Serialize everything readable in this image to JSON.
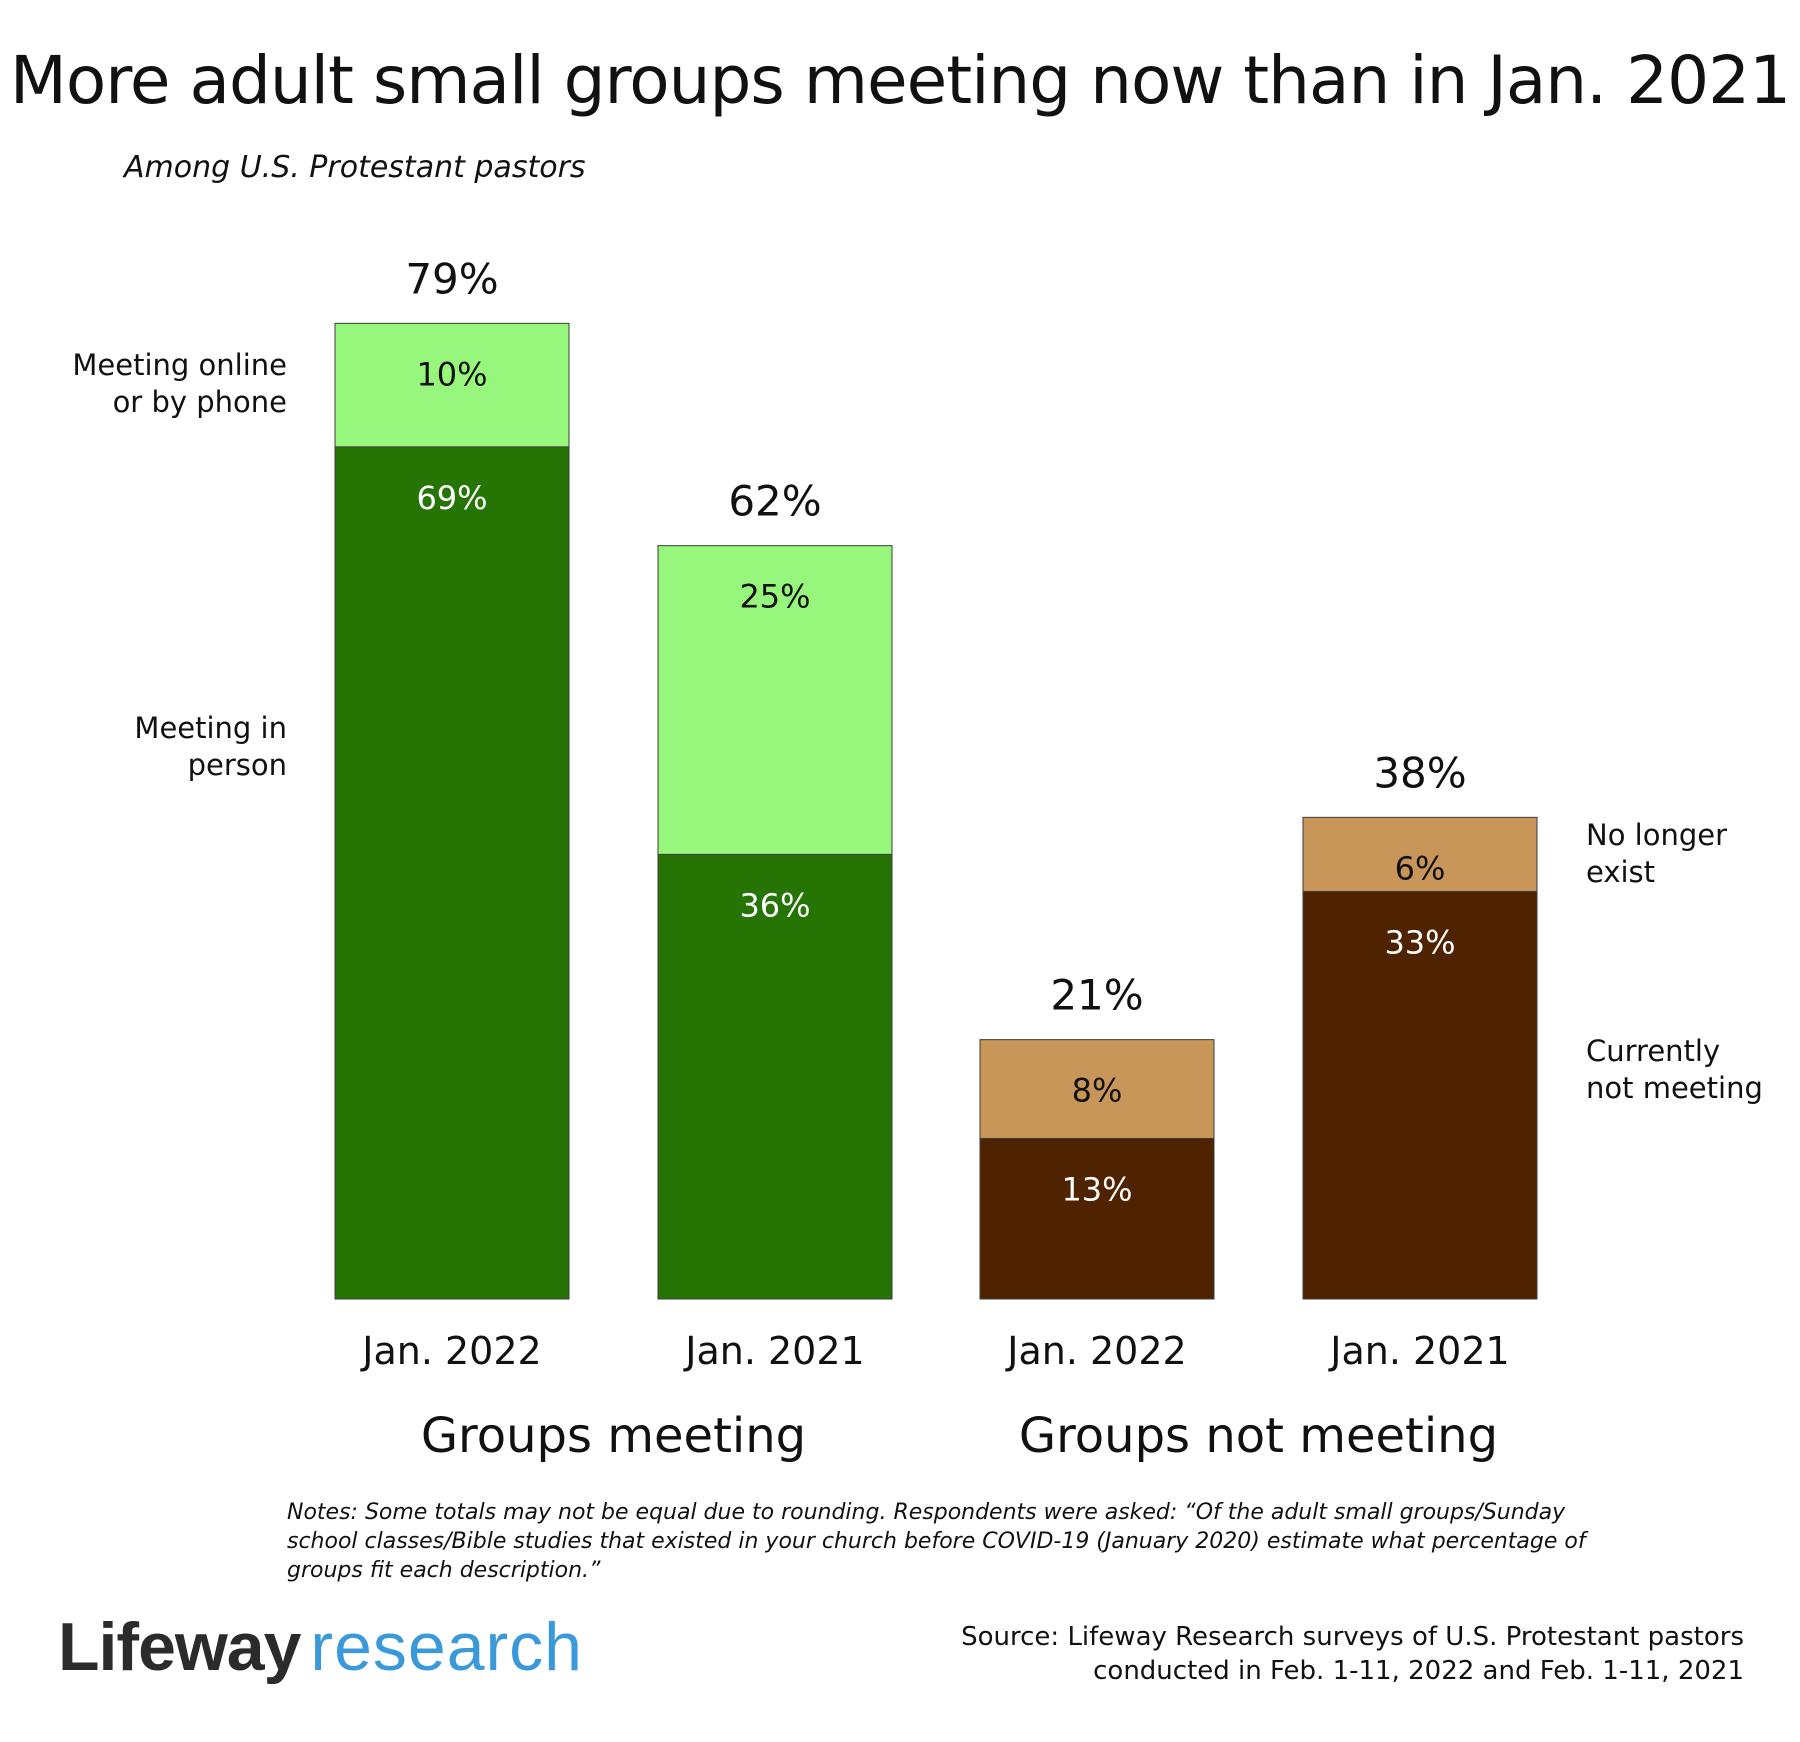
{
  "title": "More adult small groups meeting now than in Jan. 2021",
  "subtitle": "Among U.S. Protestant pastors",
  "chart_data": {
    "type": "bar",
    "stacked": true,
    "ylim": [
      0,
      100
    ],
    "grid": false,
    "bars": [
      {
        "category": "Jan. 2022",
        "group": "Groups meeting",
        "total": "79%",
        "segments": [
          {
            "series": "Meeting in person",
            "value": 69,
            "label": "69%",
            "color": "#267404",
            "text_color": "#ffffff"
          },
          {
            "series": "Meeting online or by phone",
            "value": 10,
            "label": "10%",
            "color": "#97f67c",
            "text_color": "#111111"
          }
        ]
      },
      {
        "category": "Jan. 2021",
        "group": "Groups meeting",
        "total": "62%",
        "segments": [
          {
            "series": "Meeting in person",
            "value": 36,
            "label": "36%",
            "color": "#267404",
            "text_color": "#ffffff"
          },
          {
            "series": "Meeting online or by phone",
            "value": 25,
            "label": "25%",
            "color": "#97f67c",
            "text_color": "#111111"
          }
        ]
      },
      {
        "category": "Jan. 2022",
        "group": "Groups not meeting",
        "total": "21%",
        "segments": [
          {
            "series": "Currently not meeting",
            "value": 13,
            "label": "13%",
            "color": "#502300",
            "text_color": "#ffffff"
          },
          {
            "series": "No longer exist",
            "value": 8,
            "label": "8%",
            "color": "#c99659",
            "text_color": "#111111"
          }
        ]
      },
      {
        "category": "Jan. 2021",
        "group": "Groups not meeting",
        "total": "38%",
        "segments": [
          {
            "series": "Currently not meeting",
            "value": 33,
            "label": "33%",
            "color": "#502300",
            "text_color": "#ffffff"
          },
          {
            "series": "No longer exist",
            "value": 6,
            "label": "6%",
            "color": "#c99659",
            "text_color": "#111111"
          }
        ]
      }
    ],
    "groups": [
      "Groups meeting",
      "Groups not meeting"
    ],
    "series_labels": [
      {
        "lines": [
          "Meeting online",
          "or by phone"
        ],
        "side": "left",
        "bar": 0,
        "segment": 1
      },
      {
        "lines": [
          "Meeting in",
          "person"
        ],
        "side": "left",
        "bar": 0,
        "segment": 0
      },
      {
        "lines": [
          "No longer",
          "exist"
        ],
        "side": "right",
        "bar": 3,
        "segment": 1
      },
      {
        "lines": [
          "Currently",
          "not meeting"
        ],
        "side": "right",
        "bar": 3,
        "segment": 0
      }
    ]
  },
  "notes": "Notes: Some totals may not be equal due to rounding. Respondents were asked: “Of the adult small groups/Sunday school classes/Bible studies that existed in your church before COVID-19 (January 2020) estimate what percentage of groups fit each description.”",
  "logo": {
    "word1": "Lifeway",
    "word2": "research"
  },
  "source": {
    "line1": "Source: Lifeway Research surveys of U.S. Protestant pastors",
    "line2": "conducted in Feb. 1-11, 2022 and Feb. 1-11, 2021"
  }
}
